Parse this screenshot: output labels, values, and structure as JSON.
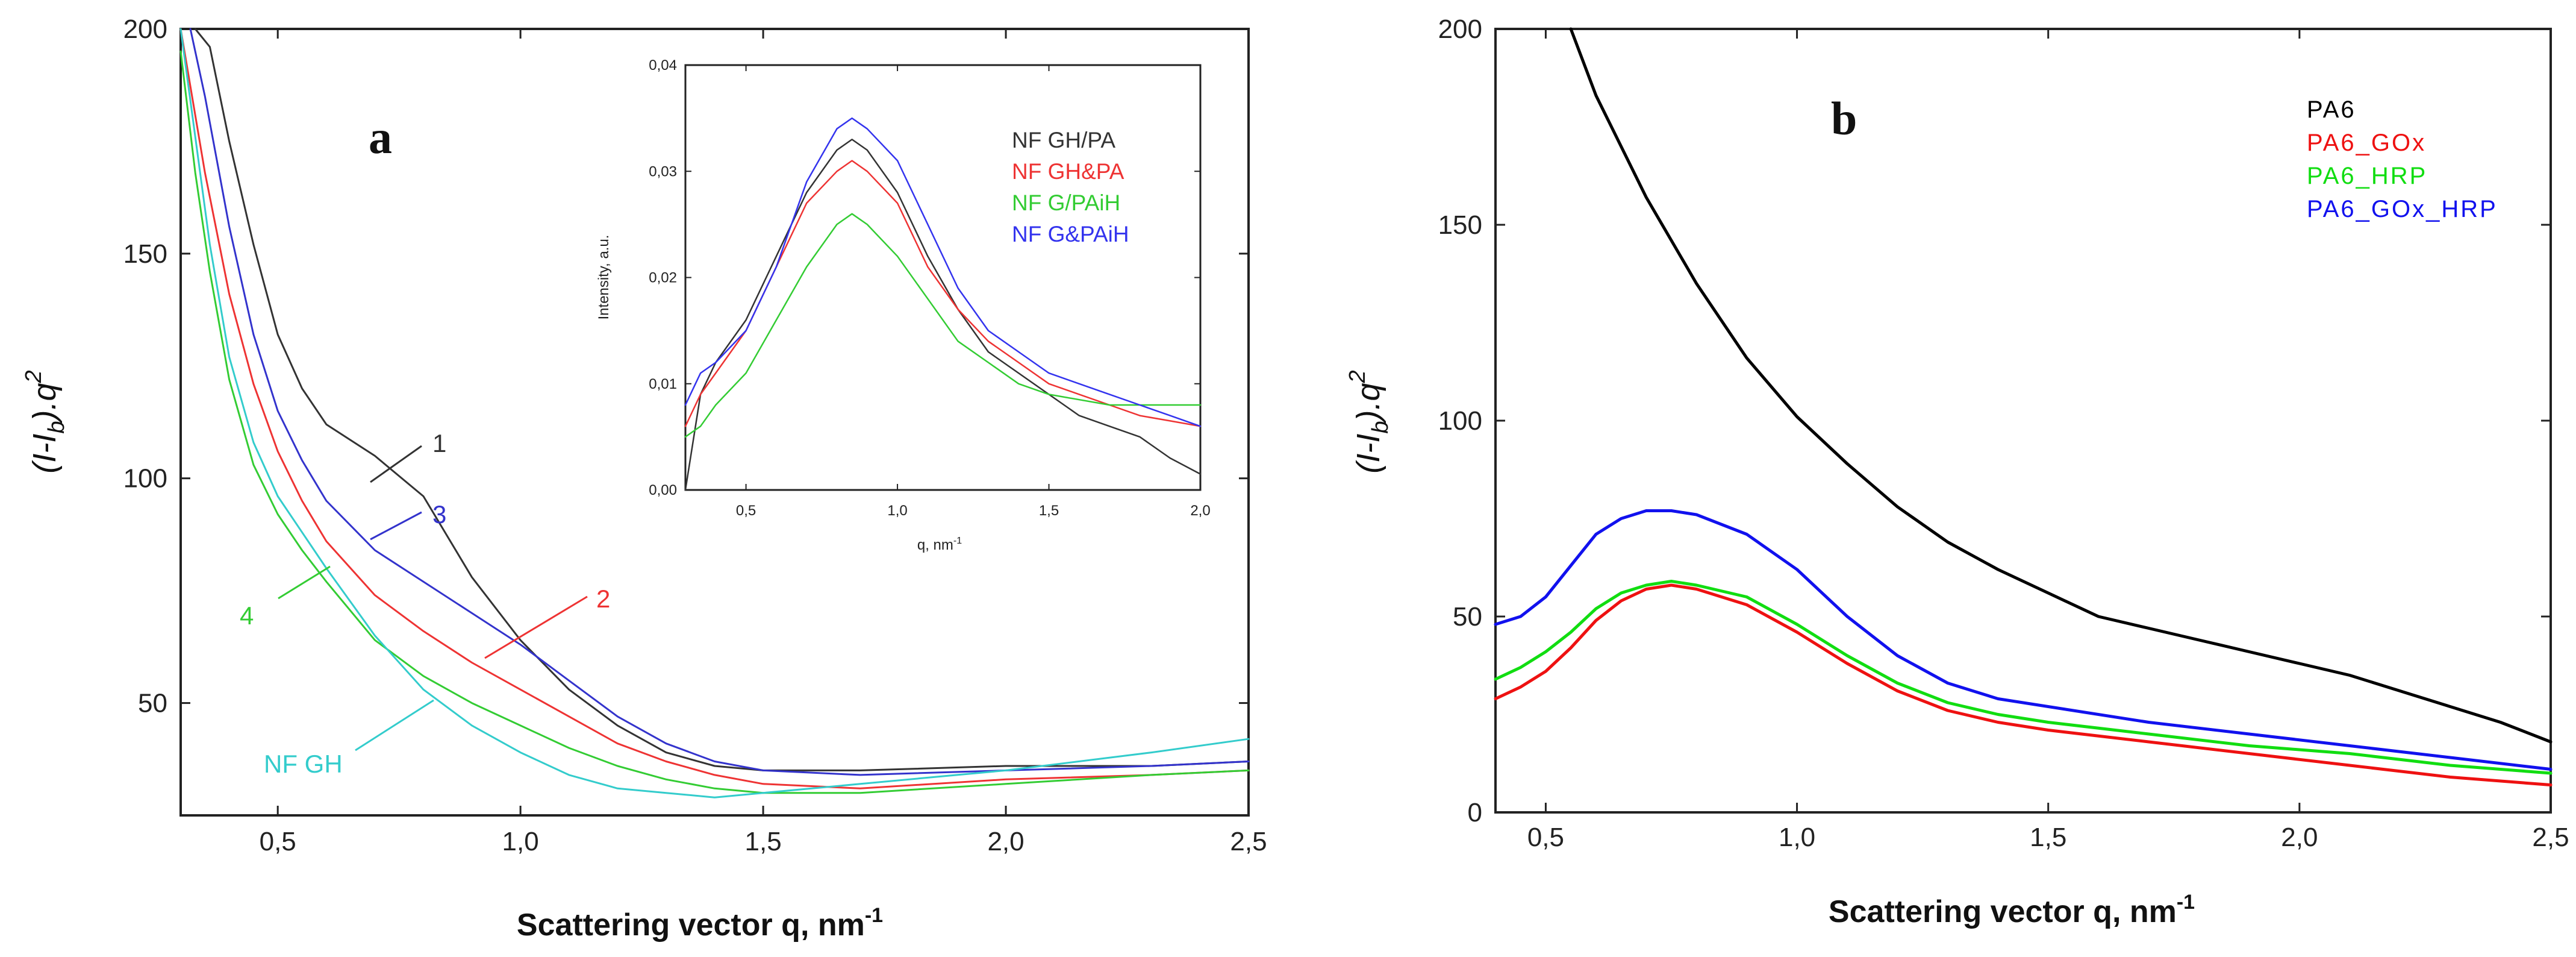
{
  "chart_data": [
    {
      "id": "a",
      "type": "line",
      "panel_label": "a",
      "xlabel": "Scattering vector q, nm",
      "xlabel_sup": "-1",
      "ylabel": "(I-I",
      "ylabel_sub": "b",
      "ylabel_tail": ").q",
      "ylabel_sup": "2",
      "xlim": [
        0.3,
        2.5
      ],
      "ylim": [
        25,
        200
      ],
      "xticks": [
        0.5,
        1.0,
        1.5,
        2.0,
        2.5
      ],
      "xtick_labels": [
        "0,5",
        "1,0",
        "1,5",
        "2,0",
        "2,5"
      ],
      "yticks": [
        50,
        100,
        150,
        200
      ],
      "ytick_labels": [
        "50",
        "100",
        "150",
        "200"
      ],
      "series": [
        {
          "name": "1",
          "color": "#333333",
          "x": [
            0.33,
            0.36,
            0.4,
            0.45,
            0.5,
            0.55,
            0.6,
            0.7,
            0.8,
            0.9,
            1.0,
            1.1,
            1.2,
            1.3,
            1.4,
            1.5,
            1.7,
            2.0,
            2.3,
            2.5
          ],
          "y": [
            200,
            196,
            175,
            152,
            132,
            120,
            112,
            105,
            96,
            78,
            64,
            53,
            45,
            39,
            36,
            35,
            35,
            36,
            36,
            37
          ]
        },
        {
          "name": "2",
          "color": "#ee3333",
          "x": [
            0.3,
            0.35,
            0.4,
            0.45,
            0.5,
            0.55,
            0.6,
            0.7,
            0.8,
            0.9,
            1.0,
            1.1,
            1.2,
            1.3,
            1.4,
            1.5,
            1.7,
            2.0,
            2.3,
            2.5
          ],
          "y": [
            200,
            168,
            141,
            121,
            106,
            95,
            86,
            74,
            66,
            59,
            53,
            47,
            41,
            37,
            34,
            32,
            31,
            33,
            34,
            35
          ]
        },
        {
          "name": "3",
          "color": "#3333cc",
          "x": [
            0.32,
            0.35,
            0.4,
            0.45,
            0.5,
            0.55,
            0.6,
            0.7,
            0.8,
            0.9,
            1.0,
            1.1,
            1.2,
            1.3,
            1.4,
            1.5,
            1.7,
            2.0,
            2.3,
            2.5
          ],
          "y": [
            200,
            185,
            156,
            132,
            115,
            104,
            95,
            84,
            77,
            70,
            63,
            55,
            47,
            41,
            37,
            35,
            34,
            35,
            36,
            37
          ]
        },
        {
          "name": "4",
          "color": "#33cc33",
          "x": [
            0.3,
            0.33,
            0.36,
            0.4,
            0.45,
            0.5,
            0.55,
            0.6,
            0.7,
            0.8,
            0.9,
            1.0,
            1.1,
            1.2,
            1.3,
            1.4,
            1.5,
            1.7,
            2.0,
            2.3,
            2.5
          ],
          "y": [
            195,
            168,
            146,
            122,
            103,
            92,
            84,
            77,
            64,
            56,
            50,
            45,
            40,
            36,
            33,
            31,
            30,
            30,
            32,
            34,
            35
          ]
        },
        {
          "name": "NF GH",
          "color": "#33cccc",
          "x": [
            0.3,
            0.33,
            0.36,
            0.4,
            0.45,
            0.5,
            0.55,
            0.6,
            0.7,
            0.8,
            0.9,
            1.0,
            1.1,
            1.2,
            1.3,
            1.4,
            1.5,
            1.7,
            2.0,
            2.3,
            2.5
          ],
          "y": [
            200,
            176,
            152,
            127,
            108,
            96,
            88,
            80,
            65,
            53,
            45,
            39,
            34,
            31,
            30,
            29,
            30,
            32,
            35,
            39,
            42
          ]
        }
      ],
      "curve_labels": [
        "1",
        "2",
        "3",
        "4",
        "NF GH"
      ],
      "inset": {
        "type": "line",
        "xlabel": "q, nm",
        "xlabel_sup": "-1",
        "ylabel": "Intensity, a.u.",
        "xlim": [
          0.3,
          2.0
        ],
        "ylim": [
          0.0,
          0.04
        ],
        "xticks": [
          0.5,
          1.0,
          1.5,
          2.0
        ],
        "xtick_labels": [
          "0,5",
          "1,0",
          "1,5",
          "2,0"
        ],
        "yticks": [
          0.0,
          0.01,
          0.02,
          0.03,
          0.04
        ],
        "ytick_labels": [
          "0,00",
          "0,01",
          "0,02",
          "0,03",
          "0,04"
        ],
        "legend_position": "top-right",
        "series": [
          {
            "name": "NF GH/PA",
            "color": "#333333",
            "x": [
              0.3,
              0.35,
              0.4,
              0.5,
              0.6,
              0.7,
              0.8,
              0.85,
              0.9,
              1.0,
              1.1,
              1.2,
              1.3,
              1.4,
              1.5,
              1.6,
              1.7,
              1.8,
              1.9,
              2.0
            ],
            "y": [
              0.0,
              0.009,
              0.012,
              0.016,
              0.022,
              0.028,
              0.032,
              0.033,
              0.032,
              0.028,
              0.022,
              0.017,
              0.013,
              0.011,
              0.009,
              0.007,
              0.006,
              0.005,
              0.003,
              0.0015
            ]
          },
          {
            "name": "NF GH&PA",
            "color": "#ee3333",
            "x": [
              0.3,
              0.35,
              0.4,
              0.5,
              0.6,
              0.7,
              0.8,
              0.85,
              0.9,
              1.0,
              1.1,
              1.2,
              1.3,
              1.4,
              1.5,
              1.6,
              1.7,
              1.8,
              1.9,
              2.0
            ],
            "y": [
              0.006,
              0.009,
              0.011,
              0.015,
              0.021,
              0.027,
              0.03,
              0.031,
              0.03,
              0.027,
              0.021,
              0.017,
              0.014,
              0.012,
              0.01,
              0.009,
              0.008,
              0.007,
              0.0065,
              0.006
            ]
          },
          {
            "name": "NF G/PAiH",
            "color": "#33cc33",
            "x": [
              0.3,
              0.35,
              0.4,
              0.5,
              0.6,
              0.7,
              0.8,
              0.85,
              0.9,
              1.0,
              1.1,
              1.2,
              1.3,
              1.4,
              1.5,
              1.6,
              1.7,
              1.8,
              1.9,
              2.0
            ],
            "y": [
              0.005,
              0.006,
              0.008,
              0.011,
              0.016,
              0.021,
              0.025,
              0.026,
              0.025,
              0.022,
              0.018,
              0.014,
              0.012,
              0.01,
              0.009,
              0.0085,
              0.008,
              0.008,
              0.008,
              0.008
            ]
          },
          {
            "name": "NF G&PAiH",
            "color": "#3333ee",
            "x": [
              0.3,
              0.35,
              0.4,
              0.5,
              0.6,
              0.7,
              0.8,
              0.85,
              0.9,
              1.0,
              1.1,
              1.2,
              1.3,
              1.4,
              1.5,
              1.6,
              1.7,
              1.8,
              1.9,
              2.0
            ],
            "y": [
              0.008,
              0.011,
              0.012,
              0.015,
              0.021,
              0.029,
              0.034,
              0.035,
              0.034,
              0.031,
              0.025,
              0.019,
              0.015,
              0.013,
              0.011,
              0.01,
              0.009,
              0.008,
              0.007,
              0.006
            ]
          }
        ]
      }
    },
    {
      "id": "b",
      "type": "line",
      "panel_label": "b",
      "xlabel": "Scattering vector q, nm",
      "xlabel_sup": "-1",
      "ylabel": "(I-I",
      "ylabel_sub": "b",
      "ylabel_tail": ").q",
      "ylabel_sup": "2",
      "xlim": [
        0.4,
        2.5
      ],
      "ylim": [
        0,
        200
      ],
      "xticks": [
        0.5,
        1.0,
        1.5,
        2.0,
        2.5
      ],
      "xtick_labels": [
        "0,5",
        "1,0",
        "1,5",
        "2,0",
        "2,5"
      ],
      "yticks": [
        0,
        50,
        100,
        150,
        200
      ],
      "ytick_labels": [
        "0",
        "50",
        "100",
        "150",
        "200"
      ],
      "legend_position": "top-right",
      "series": [
        {
          "name": "PA6",
          "color": "#000000",
          "x": [
            0.55,
            0.6,
            0.7,
            0.8,
            0.9,
            1.0,
            1.1,
            1.2,
            1.3,
            1.4,
            1.5,
            1.6,
            1.7,
            1.8,
            1.9,
            2.0,
            2.1,
            2.2,
            2.3,
            2.4,
            2.5
          ],
          "y": [
            200,
            183,
            157,
            135,
            116,
            101,
            89,
            78,
            69,
            62,
            56,
            50,
            47,
            44,
            41,
            38,
            35,
            31,
            27,
            23,
            18
          ]
        },
        {
          "name": "PA6_GOx",
          "color": "#ee1111",
          "x": [
            0.4,
            0.45,
            0.5,
            0.55,
            0.6,
            0.65,
            0.7,
            0.75,
            0.8,
            0.9,
            1.0,
            1.1,
            1.2,
            1.3,
            1.4,
            1.5,
            1.7,
            1.9,
            2.1,
            2.3,
            2.5
          ],
          "y": [
            29,
            32,
            36,
            42,
            49,
            54,
            57,
            58,
            57,
            53,
            46,
            38,
            31,
            26,
            23,
            21,
            18,
            15,
            12,
            9,
            7
          ]
        },
        {
          "name": "PA6_HRP",
          "color": "#11dd11",
          "x": [
            0.4,
            0.45,
            0.5,
            0.55,
            0.6,
            0.65,
            0.7,
            0.75,
            0.8,
            0.9,
            1.0,
            1.1,
            1.2,
            1.3,
            1.4,
            1.5,
            1.7,
            1.9,
            2.1,
            2.3,
            2.5
          ],
          "y": [
            34,
            37,
            41,
            46,
            52,
            56,
            58,
            59,
            58,
            55,
            48,
            40,
            33,
            28,
            25,
            23,
            20,
            17,
            15,
            12,
            10
          ]
        },
        {
          "name": "PA6_GOx_HRP",
          "color": "#1111ee",
          "x": [
            0.4,
            0.45,
            0.5,
            0.55,
            0.6,
            0.65,
            0.7,
            0.75,
            0.8,
            0.9,
            1.0,
            1.1,
            1.2,
            1.3,
            1.4,
            1.5,
            1.7,
            1.9,
            2.1,
            2.3,
            2.5
          ],
          "y": [
            48,
            50,
            55,
            63,
            71,
            75,
            77,
            77,
            76,
            71,
            62,
            50,
            40,
            33,
            29,
            27,
            23,
            20,
            17,
            14,
            11
          ]
        }
      ]
    }
  ]
}
